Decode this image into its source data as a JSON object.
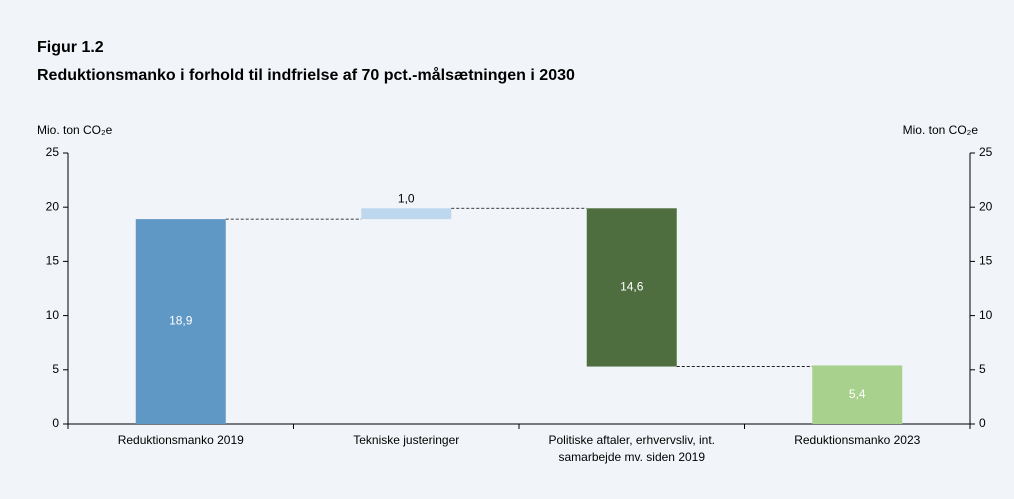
{
  "chart_data": {
    "type": "waterfall",
    "figure_label": "Figur 1.2",
    "title": "Reduktionsmanko i forhold til indfrielse af 70 pct.-målsætningen i 2030",
    "y_label": "Mio. ton CO₂e",
    "y2_label": "Mio. ton CO₂e",
    "categories": [
      "Reduktionsmanko 2019",
      "Tekniske justeringer",
      "Politiske aftaler, erhvervsliv, int.\nsamarbejde mv. siden 2019",
      "Reduktionsmanko 2023"
    ],
    "values": [
      18.9,
      1.0,
      -14.6,
      5.4
    ],
    "value_labels": [
      "18,9",
      "1,0",
      "14,6",
      "5,4"
    ],
    "totals": [
      true,
      false,
      false,
      true
    ],
    "colors": [
      "#5f97c5",
      "#bdd7ee",
      "#4f6e3f",
      "#a9d18e"
    ],
    "ylim": [
      0,
      25
    ],
    "yticks": [
      0,
      5,
      10,
      15,
      20,
      25
    ],
    "y2lim": [
      0,
      25
    ],
    "y2ticks": [
      0,
      5,
      10,
      15,
      20,
      25
    ]
  }
}
